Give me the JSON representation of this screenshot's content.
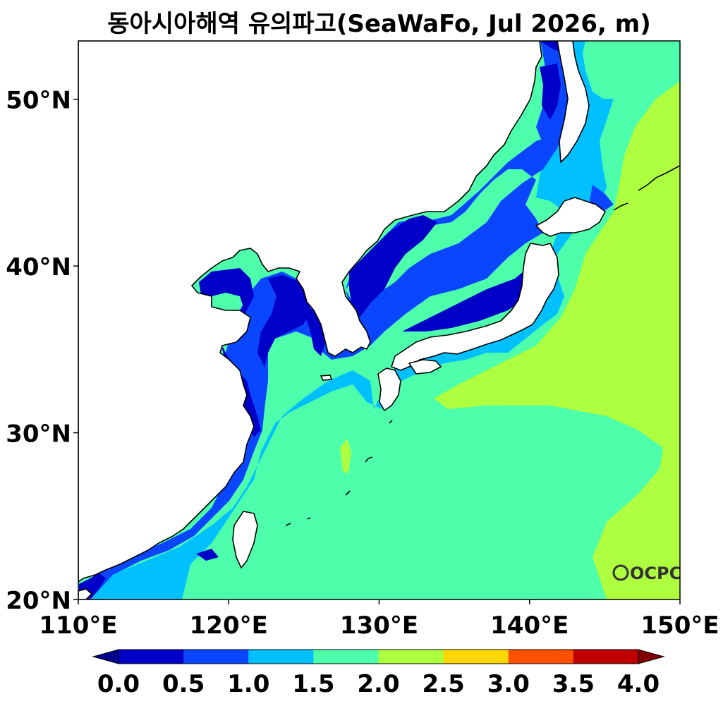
{
  "chart_data": {
    "type": "heatmap",
    "title": "동아시아해역 유의파고(SeaWaFo, Jul 2026, m)",
    "xlabel": "",
    "ylabel": "",
    "xlim": [
      110,
      150
    ],
    "ylim": [
      20,
      53.5
    ],
    "x_ticks": [
      {
        "value": 110,
        "label": "110°E"
      },
      {
        "value": 120,
        "label": "120°E"
      },
      {
        "value": 130,
        "label": "130°E"
      },
      {
        "value": 140,
        "label": "140°E"
      },
      {
        "value": 150,
        "label": "150°E"
      }
    ],
    "y_ticks": [
      {
        "value": 20,
        "label": "20°N"
      },
      {
        "value": 30,
        "label": "30°N"
      },
      {
        "value": 40,
        "label": "40°N"
      },
      {
        "value": 50,
        "label": "50°N"
      }
    ],
    "grid": false,
    "colorbar": {
      "position": "bottom",
      "levels": [
        0.0,
        0.5,
        1.0,
        1.5,
        2.0,
        2.5,
        3.0,
        3.5,
        4.0
      ],
      "tick_labels": [
        "0.0",
        "0.5",
        "1.0",
        "1.5",
        "2.0",
        "2.5",
        "3.0",
        "3.5",
        "4.0"
      ],
      "colors": [
        "#0000c8",
        "#0a46ff",
        "#00c0ff",
        "#4dffaa",
        "#adff40",
        "#ffd700",
        "#ff5000",
        "#c00000"
      ],
      "under_color": "#00008c",
      "over_color": "#800000"
    },
    "logo_text": "OCPC"
  }
}
